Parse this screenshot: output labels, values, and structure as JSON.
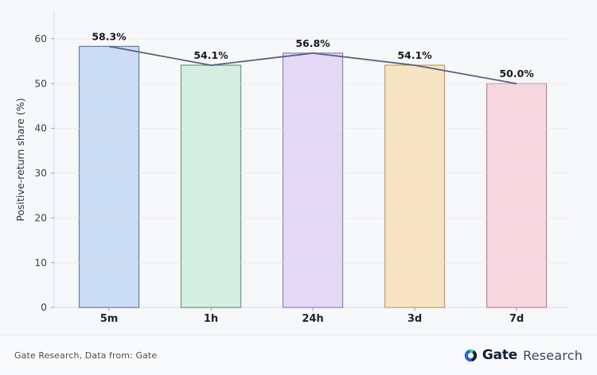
{
  "page": {
    "background": "#f7f8fa"
  },
  "chart_data": {
    "type": "bar",
    "overlay": "line",
    "categories": [
      "5m",
      "1h",
      "24h",
      "3d",
      "7d"
    ],
    "values": [
      58.3,
      54.1,
      56.8,
      54.1,
      50.0
    ],
    "value_labels": [
      "58.3%",
      "54.1%",
      "56.8%",
      "54.1%",
      "50.0%"
    ],
    "title": "",
    "xlabel": "",
    "ylabel": "Positive-return share (%)",
    "yticks": [
      0,
      10,
      20,
      30,
      40,
      50,
      60
    ],
    "ylim": [
      0,
      66
    ],
    "grid": true,
    "legend": "none",
    "bar_fills": [
      "#cbdcf5",
      "#d5eee2",
      "#e4daf6",
      "#f8e4c3",
      "#f7d6e0"
    ],
    "bar_edges": [
      "#6e81ad",
      "#6f9e87",
      "#9486bd",
      "#bfa273",
      "#bd8ba1"
    ],
    "line_color": "#59617b",
    "value_label_color": "#17191f",
    "tick_label_color": "#3d424d",
    "axis_color": "#d7dae1",
    "grid_color": "#dfe3ea"
  },
  "footer": {
    "source_text": "Gate Research, Data from: Gate",
    "logo": {
      "icon": "gate-circle-g-icon",
      "brand_bold": "Gate",
      "brand_light": "Research",
      "icon_blue": "#2b5ce5",
      "icon_navy": "#17203a",
      "icon_green": "#17e6a1"
    }
  }
}
